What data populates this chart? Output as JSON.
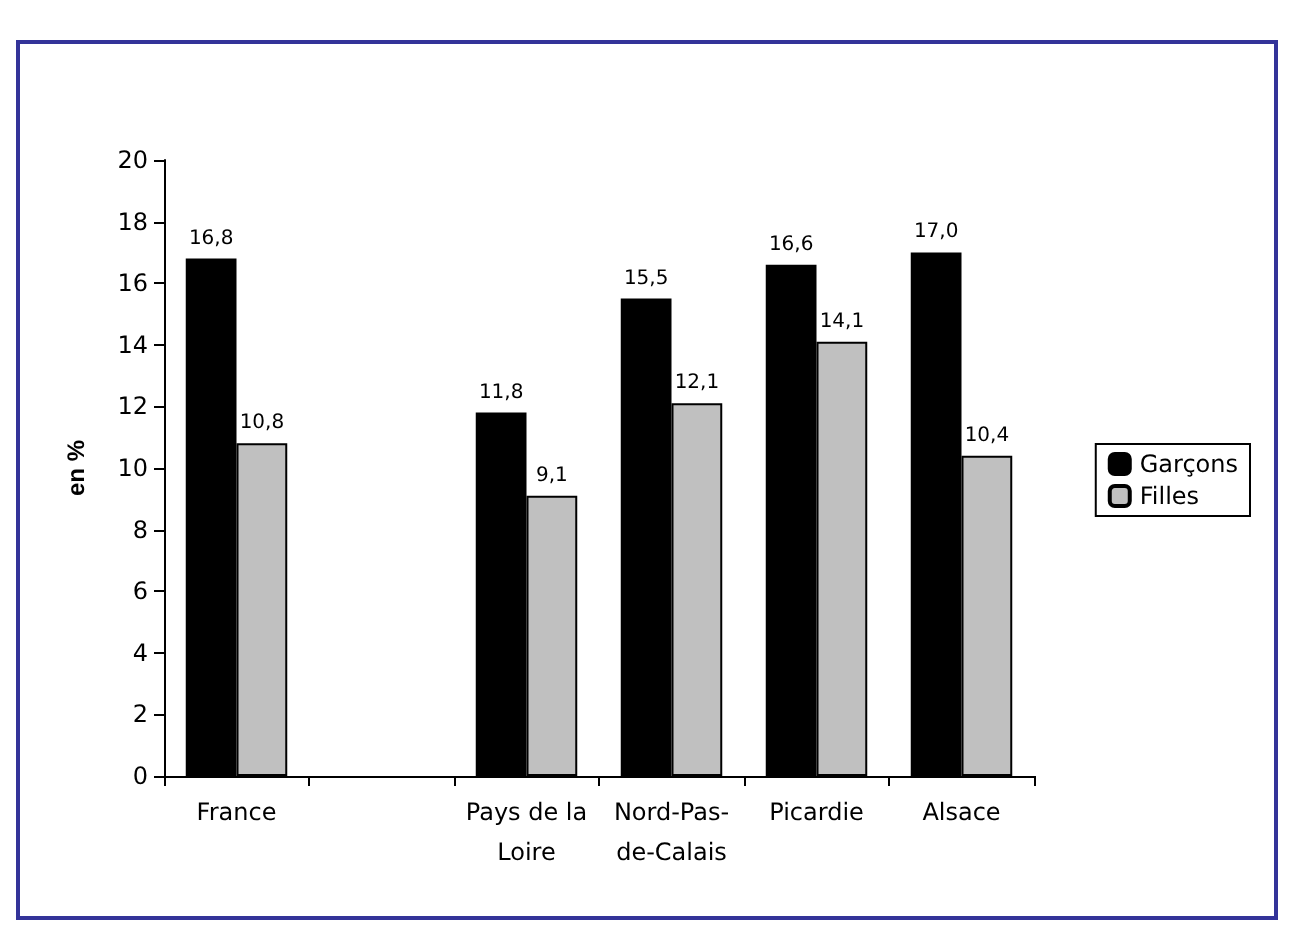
{
  "chart_data": {
    "type": "bar",
    "ylabel": "en %",
    "categories": [
      "France",
      null,
      "Pays de la\nLoire",
      "Nord-Pas-\nde-Calais",
      "Picardie",
      "Alsace"
    ],
    "series": [
      {
        "name": "Garçons",
        "color": "#000000",
        "values": [
          16.8,
          null,
          11.8,
          15.5,
          16.6,
          17.0
        ],
        "value_labels": [
          "16,8",
          null,
          "11,8",
          "15,5",
          "16,6",
          "17,0"
        ]
      },
      {
        "name": "Filles",
        "color": "#c0c0c0",
        "values": [
          10.8,
          null,
          9.1,
          12.1,
          14.1,
          10.4
        ],
        "value_labels": [
          "10,8",
          null,
          "9,1",
          "12,1",
          "14,1",
          "10,4"
        ]
      }
    ],
    "ylim": [
      0,
      20
    ],
    "yticks": [
      0,
      2,
      4,
      6,
      8,
      10,
      12,
      14,
      16,
      18,
      20
    ],
    "grid": false,
    "legend": "right"
  }
}
